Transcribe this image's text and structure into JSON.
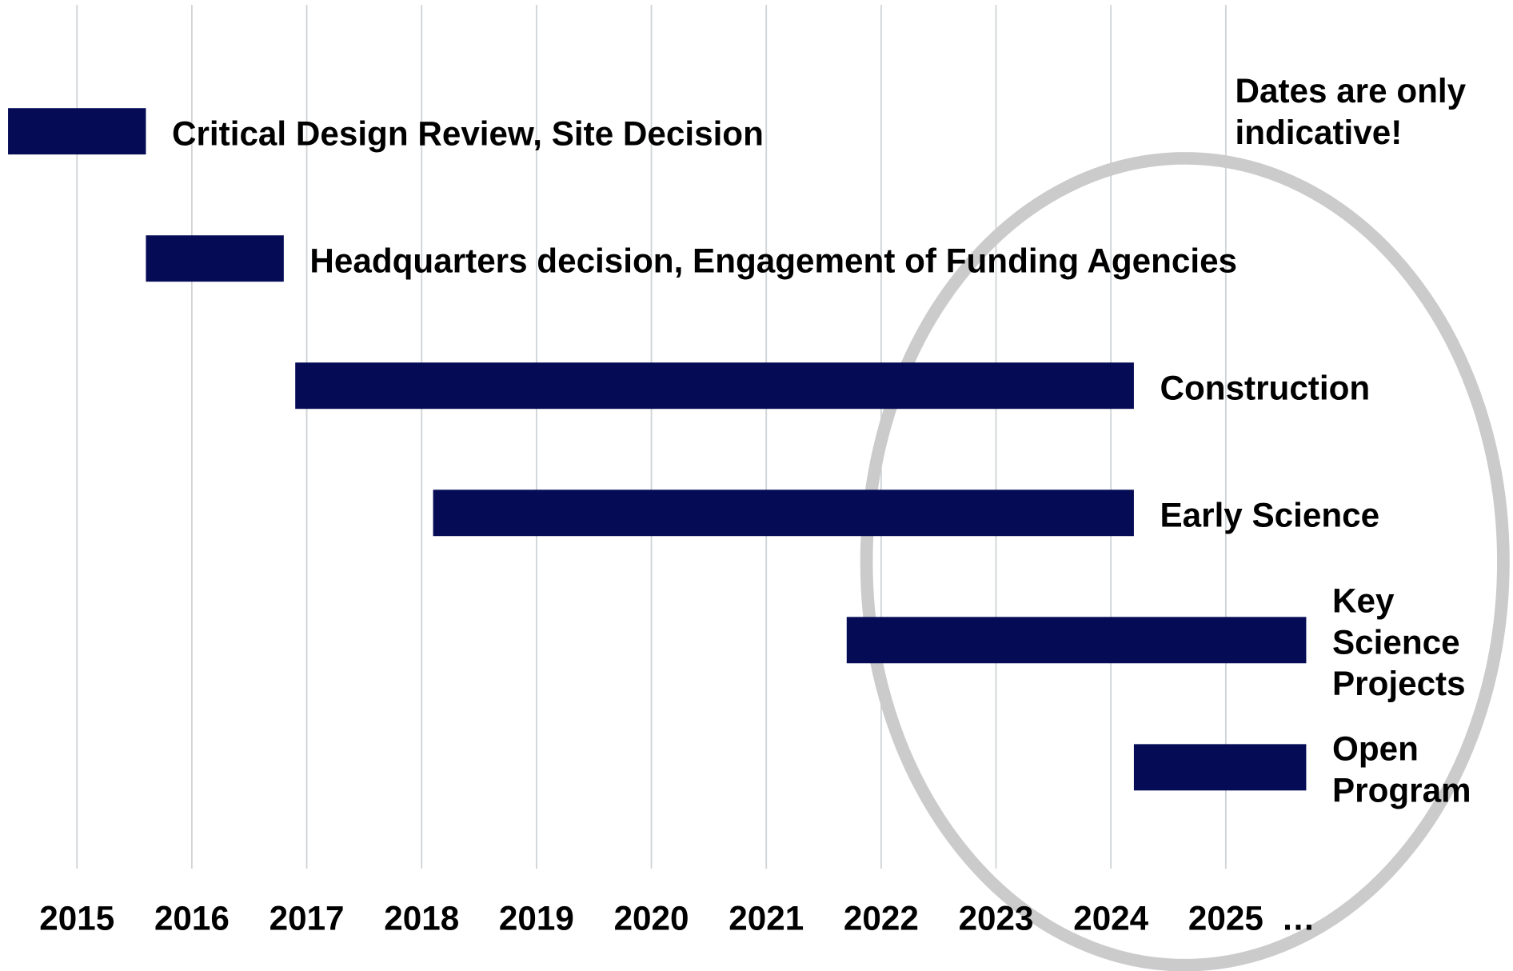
{
  "chart_data": {
    "type": "gantt",
    "tasks": [
      {
        "name": "Critical Design Review, Site Decision",
        "start": 2014.4,
        "end": 2015.6
      },
      {
        "name": "Headquarters decision, Engagement of Funding Agencies",
        "start": 2015.6,
        "end": 2016.8
      },
      {
        "name": "Construction",
        "start": 2016.9,
        "end": 2024.2
      },
      {
        "name": "Early Science",
        "start": 2018.1,
        "end": 2024.2
      },
      {
        "name": "Key\nScience\nProjects",
        "start": 2021.7,
        "end": 2025.7
      },
      {
        "name": "Open\nProgram",
        "start": 2024.2,
        "end": 2025.7
      }
    ],
    "color": "#050b55",
    "xlim": [
      2014.33,
      2027.5
    ],
    "xticks": [
      2015,
      2016,
      2017,
      2018,
      2019,
      2020,
      2021,
      2022,
      2023,
      2024,
      2025
    ],
    "axis_continuation": "…",
    "grid": true,
    "annotation": "Dates are only\nindicative!"
  }
}
